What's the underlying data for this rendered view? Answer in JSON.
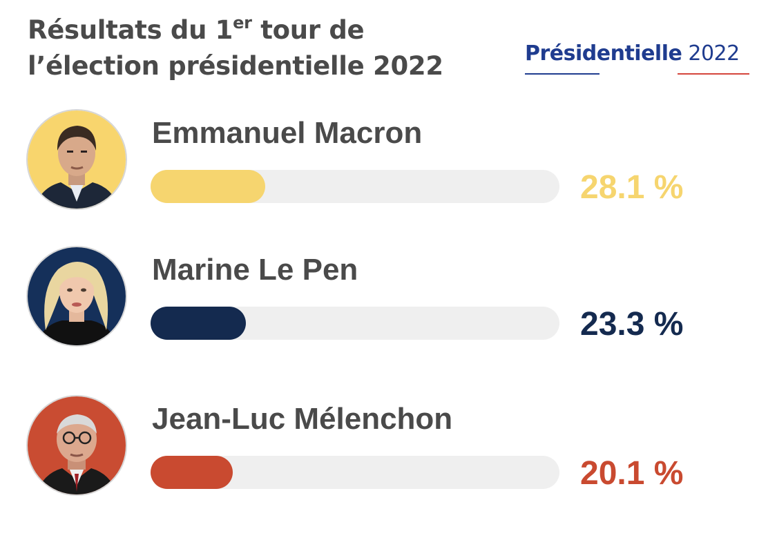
{
  "header": {
    "title_line1_prefix": "Résultats du 1",
    "title_superscript": "er",
    "title_line1_suffix": " tour de",
    "title_line2": "l’élection présidentielle 2022",
    "brand_bold": "Présidentielle",
    "brand_regular": " 2022"
  },
  "chart_data": {
    "type": "bar",
    "title": "Résultats du 1er tour de l’élection présidentielle 2022",
    "unit": "%",
    "categories": [
      "Emmanuel Macron",
      "Marine Le Pen",
      "Jean-Luc Mélenchon"
    ],
    "values": [
      28.1,
      23.3,
      20.1
    ],
    "value_labels": [
      "28.1 %",
      "23.3 %",
      "20.1 %"
    ],
    "colors": [
      "#f6d56f",
      "#142a4f",
      "#c94a30"
    ],
    "xlim": [
      0,
      100
    ]
  },
  "candidates": [
    {
      "name": "Emmanuel Macron",
      "percent_label": "28.1 %",
      "value": 28.1,
      "color": "#f6d56f",
      "avatar_bg": "#f8d56d"
    },
    {
      "name": "Marine Le Pen",
      "percent_label": "23.3 %",
      "value": 23.3,
      "color": "#142a4f",
      "avatar_bg": "#15305a"
    },
    {
      "name": "Jean-Luc Mélenchon",
      "percent_label": "20.1 %",
      "value": 20.1,
      "color": "#c94a30",
      "avatar_bg": "#c94c32"
    }
  ]
}
